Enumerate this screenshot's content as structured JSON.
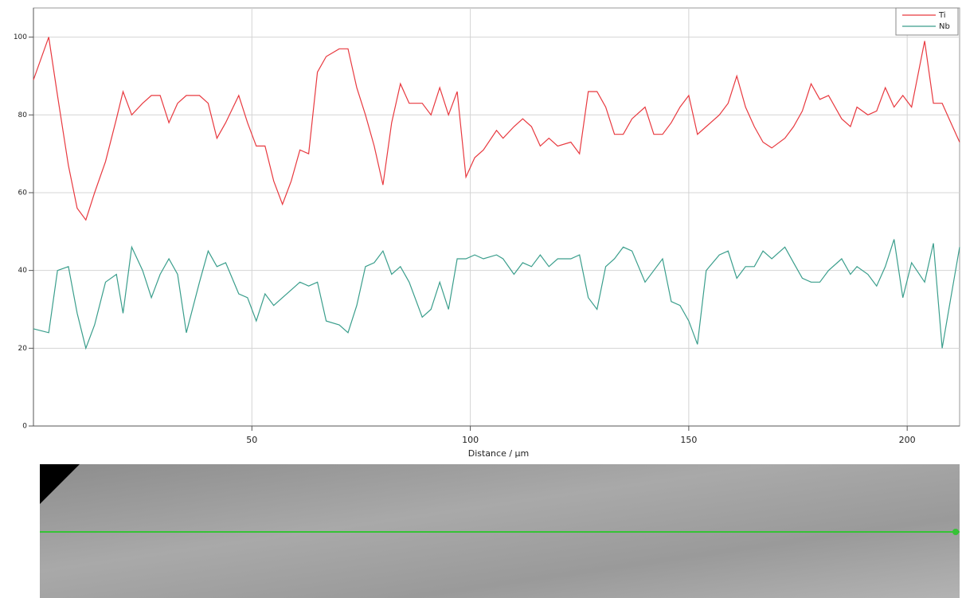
{
  "chart_data": {
    "type": "line",
    "x_label": "Distance / µm",
    "x": [
      0,
      3.5,
      5.5,
      8,
      10,
      12,
      14,
      16.5,
      19,
      20.5,
      22.5,
      25,
      27,
      29,
      31,
      33,
      35,
      38,
      40,
      42,
      44,
      47,
      49,
      51,
      53,
      55,
      57,
      59,
      61,
      63,
      65,
      67,
      70,
      72,
      74,
      76,
      78,
      80,
      82,
      84,
      86,
      89,
      91,
      93,
      95,
      97,
      99,
      101,
      103,
      106,
      107.5,
      110,
      112,
      114,
      116,
      118,
      120,
      123,
      125,
      127,
      129,
      131,
      133,
      135,
      137,
      140,
      142,
      144,
      146,
      148,
      150,
      152,
      154,
      157,
      159,
      161,
      163,
      165,
      167,
      169,
      172,
      174,
      176,
      178,
      180,
      182,
      185,
      187,
      188.5,
      191,
      193,
      195,
      197,
      199,
      201,
      204,
      206,
      208,
      210,
      212
    ],
    "series": [
      {
        "name": "Ti",
        "color": "#e8393f",
        "values": [
          89,
          100,
          85,
          67,
          56,
          53,
          60,
          68,
          79,
          86,
          80,
          83,
          85,
          85,
          78,
          83,
          85,
          85,
          83,
          74,
          78,
          85,
          78,
          72,
          72,
          63,
          57,
          63,
          71,
          70,
          91,
          95,
          97,
          97,
          87,
          80,
          72,
          62,
          78,
          88,
          83,
          83,
          80,
          87,
          80,
          86,
          64,
          69,
          71,
          76,
          74,
          77,
          79,
          77,
          72,
          74,
          72,
          73,
          70,
          86,
          86,
          82,
          75,
          75,
          79,
          82,
          75,
          75,
          78,
          82,
          85,
          75,
          77,
          80,
          83,
          90,
          82,
          77,
          73,
          71.5,
          74,
          77,
          81,
          88,
          84,
          85,
          79,
          77,
          82,
          80,
          81,
          87,
          82,
          85,
          82,
          99,
          83,
          83,
          78,
          73
        ]
      },
      {
        "name": "Nb",
        "color": "#3a9e8c",
        "values": [
          25,
          24,
          40,
          41,
          29,
          20,
          26,
          37,
          39,
          29,
          46,
          40,
          33,
          39,
          43,
          39,
          24,
          37,
          45,
          41,
          42,
          34,
          33,
          27,
          34,
          31,
          33,
          35,
          37,
          36,
          37,
          27,
          26,
          24,
          31,
          41,
          42,
          45,
          39,
          41,
          37,
          28,
          30,
          37,
          30,
          43,
          43,
          44,
          43,
          44,
          43,
          39,
          42,
          41,
          44,
          41,
          43,
          43,
          44,
          33,
          30,
          41,
          43,
          46,
          45,
          37,
          40,
          43,
          32,
          31,
          27,
          21,
          40,
          44,
          45,
          38,
          41,
          41,
          45,
          43,
          46,
          42,
          38,
          37,
          37,
          40,
          43,
          39,
          41,
          39,
          36,
          41,
          48,
          33,
          42,
          37,
          47,
          20,
          33,
          46
        ]
      }
    ],
    "xlim": [
      0,
      212
    ],
    "ylim": [
      0,
      107.5
    ],
    "xticks": [
      50,
      100,
      150,
      200
    ],
    "yticks": [
      0,
      20,
      40,
      60,
      80,
      100
    ],
    "grid": true,
    "legend": "top-right"
  }
}
